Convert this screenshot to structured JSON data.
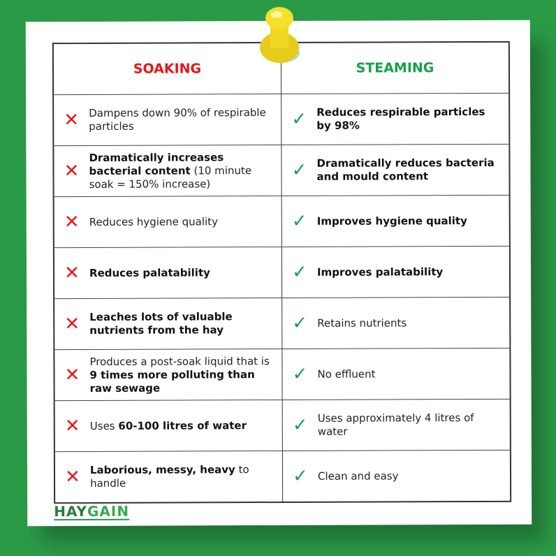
{
  "headers": {
    "soaking": "SOAKING",
    "steaming": "STEAMING"
  },
  "rows": [
    {
      "soaking": [
        {
          "t": "Dampens down 90% of respirable particles",
          "b": false
        }
      ],
      "steaming": [
        {
          "t": "Reduces respirable particles by 98%",
          "b": true
        }
      ]
    },
    {
      "soaking": [
        {
          "t": "Dramatically increases bacterial content",
          "b": true
        },
        {
          "t": " (10 minute soak = 150% increase)",
          "b": false
        }
      ],
      "steaming": [
        {
          "t": "Dramatically reduces bacteria and mould content",
          "b": true
        }
      ]
    },
    {
      "soaking": [
        {
          "t": "Reduces hygiene quality",
          "b": false
        }
      ],
      "steaming": [
        {
          "t": "Improves hygiene quality",
          "b": true
        }
      ]
    },
    {
      "soaking": [
        {
          "t": "Reduces palatability",
          "b": true
        }
      ],
      "steaming": [
        {
          "t": "Improves palatability",
          "b": true
        }
      ]
    },
    {
      "soaking": [
        {
          "t": "Leaches lots of valuable nutrients from the hay",
          "b": true
        }
      ],
      "steaming": [
        {
          "t": "Retains nutrients",
          "b": false
        }
      ]
    },
    {
      "soaking": [
        {
          "t": "Produces a post-soak liquid that is ",
          "b": false
        },
        {
          "t": "9 times more polluting than raw sewage",
          "b": true
        }
      ],
      "steaming": [
        {
          "t": "No effluent",
          "b": false
        }
      ]
    },
    {
      "soaking": [
        {
          "t": "Uses ",
          "b": false
        },
        {
          "t": "60-100 litres of water",
          "b": true
        }
      ],
      "steaming": [
        {
          "t": "Uses approximately 4 litres of water",
          "b": false
        }
      ]
    },
    {
      "soaking": [
        {
          "t": "Laborious, messy, heavy",
          "b": true
        },
        {
          "t": " to handle",
          "b": false
        }
      ],
      "steaming": [
        {
          "t": "Clean and easy",
          "b": false
        }
      ]
    }
  ],
  "icons": {
    "soaking": "cross-icon",
    "steaming": "check-icon"
  },
  "logo": {
    "text": "HAYGAIN"
  },
  "colors": {
    "background": "#2b9a47",
    "soaking": "#e8161b",
    "steaming": "#17a04a"
  }
}
